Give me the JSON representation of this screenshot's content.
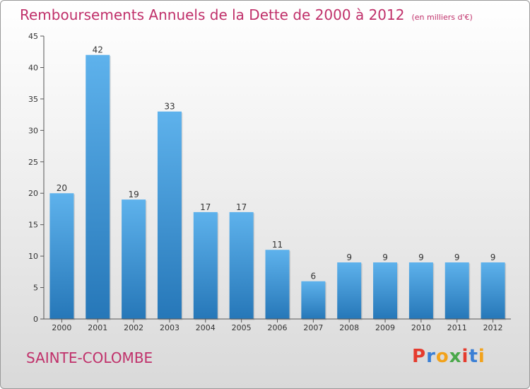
{
  "title": "Remboursements Annuels de la Dette de 2000 à 2012",
  "unit": "(en milliers d'€)",
  "commune": "SAINTE-COLOMBE",
  "logo": {
    "letters": [
      "P",
      "r",
      "o",
      "x",
      "i",
      "t",
      "i"
    ],
    "colors": [
      "#e53b2e",
      "#3a7fd5",
      "#f2a21b",
      "#4aa84a",
      "#e53b2e",
      "#3a7fd5",
      "#f2a21b"
    ]
  },
  "colors": {
    "title": "#c0306a",
    "bar_top": "#5eb2ec",
    "bar_bottom": "#2677b8",
    "axis": "#555555"
  },
  "chart_data": {
    "type": "bar",
    "categories": [
      "2000",
      "2001",
      "2002",
      "2003",
      "2004",
      "2005",
      "2006",
      "2007",
      "2008",
      "2009",
      "2010",
      "2011",
      "2012"
    ],
    "values": [
      20,
      42,
      19,
      33,
      17,
      17,
      11,
      6,
      9,
      9,
      9,
      9,
      9
    ],
    "ylim": [
      0,
      45
    ],
    "yticks": [
      0,
      5,
      10,
      15,
      20,
      25,
      30,
      35,
      40,
      45
    ],
    "grid": false,
    "data_labels": true
  }
}
